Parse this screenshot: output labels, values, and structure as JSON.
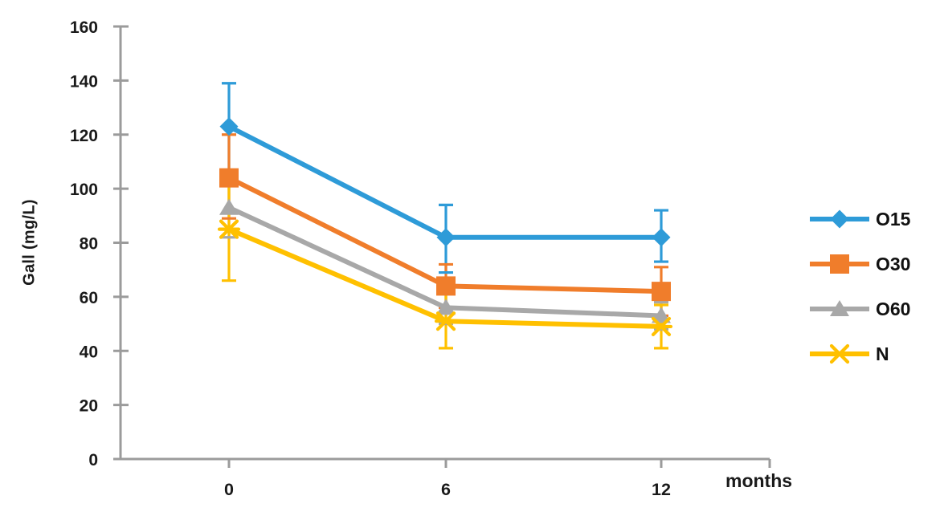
{
  "chart_data": {
    "type": "line",
    "title": "",
    "xlabel": "months",
    "ylabel": "Gall (mg/L)",
    "x_categories": [
      "0",
      "6",
      "12"
    ],
    "ylim": [
      0,
      160
    ],
    "ytick_step": 20,
    "ytick_labels": [
      "0",
      "20",
      "40",
      "60",
      "80",
      "100",
      "120",
      "140",
      "160"
    ],
    "grid": false,
    "legend_position": "right",
    "error_bars": true,
    "axis_color": "#9b9b9b",
    "text_color": "#1a1a1a",
    "series": [
      {
        "name": "O15",
        "color": "#2e9bd8",
        "marker": "diamond",
        "values": [
          123,
          82,
          82
        ],
        "error_plus": [
          16,
          12,
          10
        ],
        "error_minus": [
          16,
          13,
          9
        ]
      },
      {
        "name": "O30",
        "color": "#f07d2b",
        "marker": "square",
        "values": [
          104,
          64,
          62
        ],
        "error_plus": [
          16,
          8,
          9
        ],
        "error_minus": [
          15,
          8,
          9
        ]
      },
      {
        "name": "O60",
        "color": "#a8a8a8",
        "marker": "triangle",
        "values": [
          93,
          56,
          53
        ],
        "error_plus": [
          11,
          6,
          5
        ],
        "error_minus": [
          11,
          6,
          5
        ]
      },
      {
        "name": "N",
        "color": "#ffc000",
        "marker": "x",
        "values": [
          85,
          51,
          49
        ],
        "error_plus": [
          20,
          12,
          8
        ],
        "error_minus": [
          19,
          10,
          8
        ]
      }
    ]
  }
}
